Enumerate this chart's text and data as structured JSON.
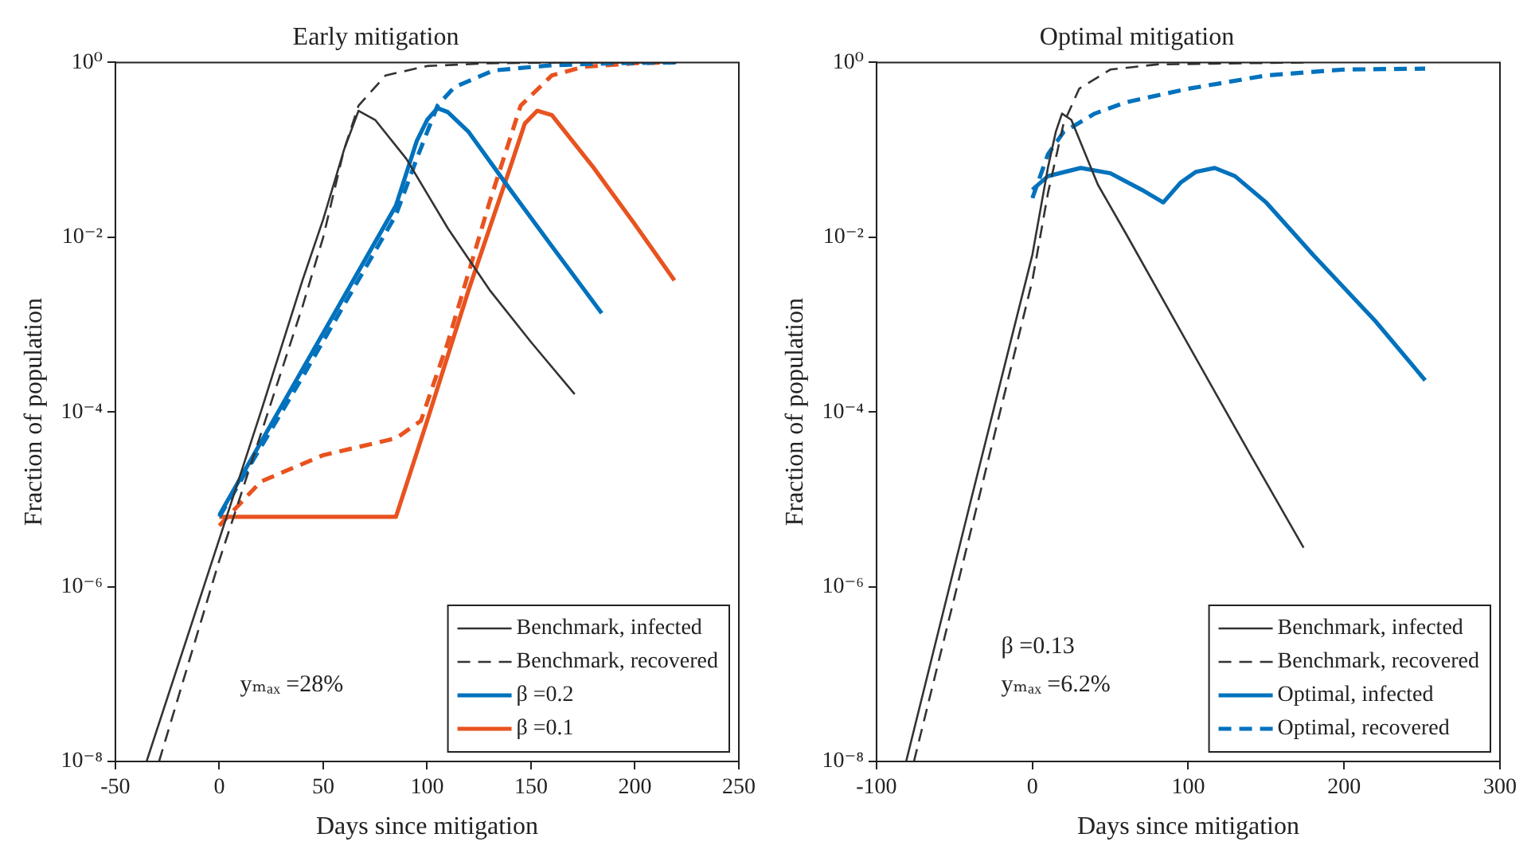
{
  "chart_data": [
    {
      "type": "line",
      "title": "Early mitigation",
      "xlabel": "Days since mitigation",
      "ylabel": "Fraction of population",
      "log": "y",
      "grid": false,
      "legend": "bottom right",
      "xlim": [
        -50,
        250
      ],
      "xticks": [
        -50,
        0,
        50,
        100,
        150,
        200,
        250
      ],
      "ylim": [
        1e-08,
        1
      ],
      "yticks": [
        {
          "value": 1e-08,
          "label": "10⁻⁸"
        },
        {
          "value": 1e-06,
          "label": "10⁻⁶"
        },
        {
          "value": 0.0001,
          "label": "10⁻⁴"
        },
        {
          "value": 0.01,
          "label": "10⁻²"
        },
        {
          "value": 1,
          "label": "10⁰"
        }
      ],
      "annotations": [
        "yₘₐₓ =28%"
      ],
      "series": [
        {
          "name": "Benchmark, infected",
          "color": "#333333",
          "line_style": "solid",
          "x": [
            -35,
            0,
            20,
            40,
            50,
            55,
            60,
            67,
            75,
            90,
            110,
            130,
            150,
            171
          ],
          "values": [
            1e-08,
            3.5e-06,
            0.0001,
            0.0032,
            0.016,
            0.04,
            0.1,
            0.28,
            0.22,
            0.079,
            0.0126,
            0.0025,
            0.00063,
            0.00016
          ]
        },
        {
          "name": "Benchmark, recovered",
          "color": "#333333",
          "line_style": "dashed",
          "x": [
            -29,
            0,
            20,
            40,
            50,
            60,
            67,
            80,
            100,
            130,
            170,
            220
          ],
          "values": [
            1e-08,
            2e-06,
            5.6e-05,
            0.0016,
            0.01,
            0.1,
            0.32,
            0.71,
            0.91,
            0.98,
            1,
            1
          ]
        },
        {
          "name": "β =0.2",
          "color": "#0072bd",
          "line_style": "solid",
          "x": [
            0,
            85,
            95,
            100,
            105,
            110,
            120,
            140,
            160,
            184
          ],
          "values": [
            6.6e-06,
            0.023,
            0.126,
            0.22,
            0.3,
            0.27,
            0.16,
            0.035,
            0.0079,
            0.00135
          ]
        },
        {
          "color": "#0072bd",
          "line_style": "dashed",
          "x": [
            0,
            40,
            85,
            95,
            105,
            113,
            132,
            160,
            190,
            220
          ],
          "values": [
            6.3e-06,
            0.00025,
            0.018,
            0.079,
            0.32,
            0.52,
            0.81,
            0.93,
            0.98,
            1
          ]
        },
        {
          "name": "β =0.1",
          "color": "#e8531f",
          "line_style": "solid",
          "x": [
            0,
            85,
            100,
            120,
            140,
            147,
            153,
            160,
            180,
            200,
            219
          ],
          "values": [
            6.3e-06,
            6.3e-06,
            7.9e-05,
            0.0025,
            0.063,
            0.2,
            0.28,
            0.25,
            0.063,
            0.014,
            0.0032
          ]
        },
        {
          "color": "#e8531f",
          "line_style": "dashed",
          "x": [
            0,
            20,
            50,
            85,
            97,
            110,
            130,
            145,
            160,
            175,
            200,
            219
          ],
          "values": [
            5e-06,
            1.6e-05,
            3.2e-05,
            5e-05,
            7.9e-05,
            0.00063,
            0.025,
            0.32,
            0.71,
            0.89,
            0.98,
            1
          ]
        }
      ]
    },
    {
      "type": "line",
      "title": "Optimal mitigation",
      "xlabel": "Days since mitigation",
      "ylabel": "Fraction of population",
      "log": "y",
      "grid": false,
      "legend": "bottom right",
      "xlim": [
        -100,
        300
      ],
      "xticks": [
        -100,
        0,
        100,
        200,
        300
      ],
      "ylim": [
        1e-08,
        1
      ],
      "yticks": [
        {
          "value": 1e-08,
          "label": "10⁻⁸"
        },
        {
          "value": 1e-06,
          "label": "10⁻⁶"
        },
        {
          "value": 0.0001,
          "label": "10⁻⁴"
        },
        {
          "value": 0.01,
          "label": "10⁻²"
        },
        {
          "value": 1,
          "label": "10⁰"
        }
      ],
      "annotations": [
        "β =0.13",
        "yₘₐₓ =6.2%"
      ],
      "series": [
        {
          "name": "Benchmark, infected",
          "color": "#333333",
          "line_style": "solid",
          "x": [
            -81,
            -40,
            0,
            10,
            15,
            19,
            25,
            42,
            60,
            100,
            140,
            174
          ],
          "values": [
            1e-08,
            8.9e-06,
            0.0063,
            0.063,
            0.16,
            0.26,
            0.22,
            0.04,
            0.011,
            0.00059,
            3.2e-05,
            2.8e-06
          ]
        },
        {
          "name": "Benchmark, recovered",
          "color": "#333333",
          "line_style": "dashed",
          "x": [
            -76,
            -40,
            0,
            10,
            20,
            30,
            50,
            80,
            175
          ],
          "values": [
            1e-08,
            4e-06,
            0.0032,
            0.032,
            0.2,
            0.5,
            0.83,
            0.95,
            1
          ]
        },
        {
          "name": "Optimal, infected",
          "color": "#0072bd",
          "line_style": "solid",
          "x": [
            0,
            10,
            31,
            50,
            70,
            84,
            95,
            105,
            117,
            130,
            150,
            180,
            220,
            252
          ],
          "values": [
            0.035,
            0.05,
            0.062,
            0.054,
            0.035,
            0.025,
            0.042,
            0.056,
            0.062,
            0.05,
            0.025,
            0.0063,
            0.0011,
            0.00023
          ]
        },
        {
          "name": "Optimal, recovered",
          "color": "#0072bd",
          "line_style": "dashed",
          "x": [
            0,
            10,
            20,
            40,
            60,
            100,
            150,
            200,
            252
          ],
          "values": [
            0.028,
            0.089,
            0.16,
            0.26,
            0.35,
            0.5,
            0.71,
            0.83,
            0.85
          ]
        }
      ]
    }
  ]
}
